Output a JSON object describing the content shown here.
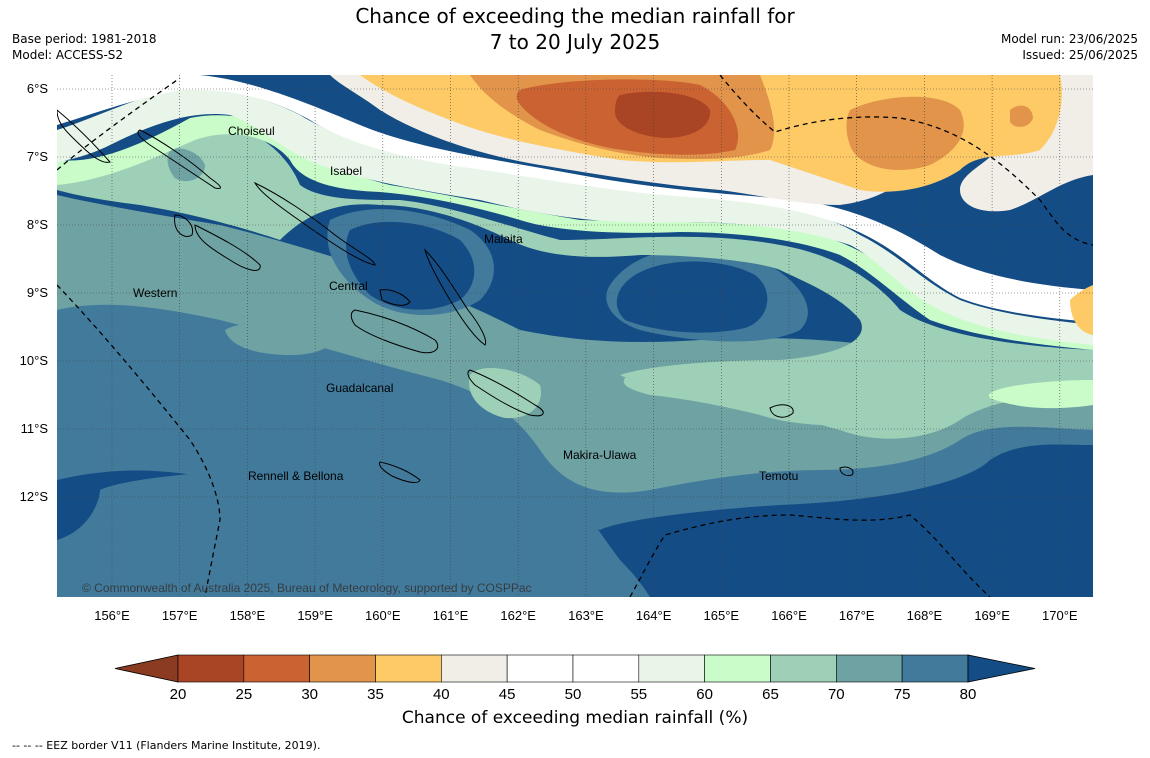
{
  "title": {
    "line1": "Chance of exceeding the median rainfall for",
    "line2": "7 to 20 July 2025"
  },
  "meta_left": {
    "base_period": "Base period: 1981-2018",
    "model": "Model: ACCESS-S2"
  },
  "meta_right": {
    "model_run": "Model run: 23/06/2025",
    "issued": "Issued: 25/06/2025"
  },
  "lat_labels": [
    "6°S",
    "7°S",
    "8°S",
    "9°S",
    "10°S",
    "11°S",
    "12°S"
  ],
  "lon_labels": [
    "156°E",
    "157°E",
    "158°E",
    "159°E",
    "160°E",
    "161°E",
    "162°E",
    "163°E",
    "164°E",
    "165°E",
    "166°E",
    "167°E",
    "168°E",
    "169°E",
    "170°E"
  ],
  "regions": [
    "Choiseul",
    "Isabel",
    "Malaita",
    "Western",
    "Central",
    "Guadalcanal",
    "Makira-Ulawa",
    "Rennell & Bellona",
    "Temotu"
  ],
  "copyright": "© Commonwealth of Australia 2025, Bureau of Meteorology, supported by COSPPac",
  "colorbar": {
    "ticks": [
      "20",
      "25",
      "30",
      "35",
      "40",
      "45",
      "50",
      "55",
      "60",
      "65",
      "70",
      "75",
      "80"
    ],
    "colors": [
      "#a94525",
      "#cb6231",
      "#e1944a",
      "#fdca66",
      "#f1ede7",
      "#ffffff",
      "#ffffff",
      "#eaf5ea",
      "#c9fcc9",
      "#9ed0b7",
      "#6ea2a3",
      "#427a9c"
    ],
    "low_color": "#8b3b22",
    "high_color": "#144d86",
    "label": "Chance of exceeding median rainfall (%)"
  },
  "footnote": "--  --  -- EEZ border V11 (Flanders Marine Institute, 2019)."
}
